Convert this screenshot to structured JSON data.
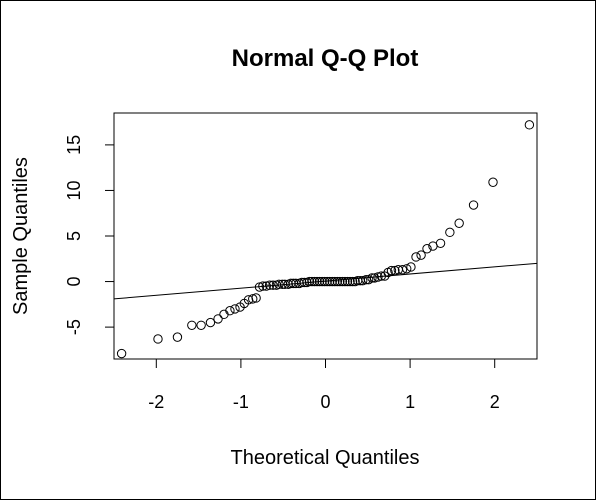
{
  "chart_data": {
    "type": "scatter",
    "title": "Normal Q-Q Plot",
    "xlabel": "Theoretical Quantiles",
    "ylabel": "Sample Quantiles",
    "xlim": [
      -2.5,
      2.5
    ],
    "ylim": [
      -8.5,
      18.5
    ],
    "xticks": [
      -2,
      -1,
      0,
      1,
      2
    ],
    "yticks": [
      -5,
      0,
      5,
      10,
      15
    ],
    "grid": false,
    "marker": "open-circle",
    "colors": {
      "points": "#000000",
      "line": "#000000"
    },
    "reference_line": {
      "x": [
        -2.5,
        2.5
      ],
      "y": [
        -1.9,
        2.0
      ]
    },
    "points": [
      [
        -2.41,
        -7.9
      ],
      [
        -1.98,
        -6.3
      ],
      [
        -1.75,
        -6.1
      ],
      [
        -1.58,
        -4.8
      ],
      [
        -1.47,
        -4.8
      ],
      [
        -1.36,
        -4.5
      ],
      [
        -1.27,
        -4.1
      ],
      [
        -1.2,
        -3.6
      ],
      [
        -1.13,
        -3.2
      ],
      [
        -1.07,
        -3.0
      ],
      [
        -1.01,
        -2.8
      ],
      [
        -0.96,
        -2.4
      ],
      [
        -0.91,
        -2.0
      ],
      [
        -0.86,
        -1.9
      ],
      [
        -0.82,
        -1.8
      ],
      [
        -0.78,
        -0.6
      ],
      [
        -0.74,
        -0.5
      ],
      [
        -0.7,
        -0.5
      ],
      [
        -0.66,
        -0.4
      ],
      [
        -0.62,
        -0.4
      ],
      [
        -0.58,
        -0.4
      ],
      [
        -0.55,
        -0.3
      ],
      [
        -0.51,
        -0.3
      ],
      [
        -0.48,
        -0.3
      ],
      [
        -0.44,
        -0.3
      ],
      [
        -0.41,
        -0.2
      ],
      [
        -0.38,
        -0.2
      ],
      [
        -0.35,
        -0.2
      ],
      [
        -0.31,
        -0.2
      ],
      [
        -0.28,
        -0.1
      ],
      [
        -0.25,
        -0.1
      ],
      [
        -0.22,
        -0.1
      ],
      [
        -0.19,
        0.0
      ],
      [
        -0.16,
        0.0
      ],
      [
        -0.13,
        0.0
      ],
      [
        -0.1,
        0.0
      ],
      [
        -0.07,
        0.0
      ],
      [
        -0.04,
        0.0
      ],
      [
        -0.01,
        0.0
      ],
      [
        0.02,
        0.0
      ],
      [
        0.05,
        0.0
      ],
      [
        0.08,
        0.0
      ],
      [
        0.11,
        0.0
      ],
      [
        0.14,
        0.0
      ],
      [
        0.17,
        0.0
      ],
      [
        0.2,
        0.0
      ],
      [
        0.23,
        0.0
      ],
      [
        0.26,
        0.0
      ],
      [
        0.29,
        0.0
      ],
      [
        0.32,
        0.0
      ],
      [
        0.35,
        0.0
      ],
      [
        0.38,
        0.1
      ],
      [
        0.41,
        0.1
      ],
      [
        0.44,
        0.1
      ],
      [
        0.48,
        0.2
      ],
      [
        0.51,
        0.2
      ],
      [
        0.55,
        0.4
      ],
      [
        0.58,
        0.4
      ],
      [
        0.62,
        0.5
      ],
      [
        0.66,
        0.6
      ],
      [
        0.7,
        0.6
      ],
      [
        0.74,
        1.0
      ],
      [
        0.78,
        1.2
      ],
      [
        0.82,
        1.2
      ],
      [
        0.86,
        1.3
      ],
      [
        0.91,
        1.3
      ],
      [
        0.96,
        1.4
      ],
      [
        1.01,
        1.6
      ],
      [
        1.07,
        2.7
      ],
      [
        1.13,
        2.9
      ],
      [
        1.2,
        3.6
      ],
      [
        1.27,
        3.9
      ],
      [
        1.36,
        4.2
      ],
      [
        1.47,
        5.4
      ],
      [
        1.58,
        6.4
      ],
      [
        1.75,
        8.4
      ],
      [
        1.98,
        10.9
      ],
      [
        2.41,
        17.2
      ]
    ]
  }
}
